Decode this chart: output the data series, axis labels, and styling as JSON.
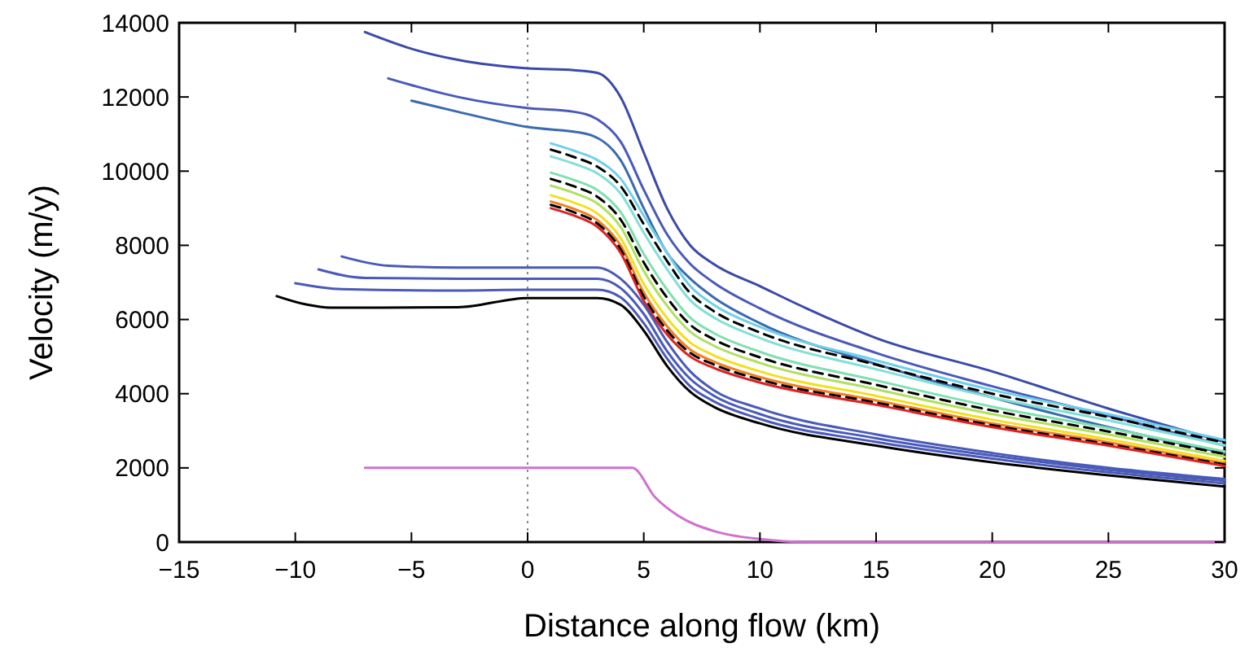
{
  "chart_data": {
    "type": "line",
    "xlabel": "Distance along flow (km)",
    "ylabel": "Velocity (m/y)",
    "xlim": [
      -15,
      30
    ],
    "ylim": [
      0,
      14000
    ],
    "xticks": [
      {
        "value": -15,
        "label": "−15"
      },
      {
        "value": -10,
        "label": "−10"
      },
      {
        "value": -5,
        "label": "−5"
      },
      0,
      5,
      10,
      15,
      20,
      25,
      30
    ],
    "yticks": [
      0,
      2000,
      4000,
      6000,
      8000,
      10000,
      12000,
      14000
    ],
    "grid": false,
    "marker": "none",
    "ref_lines": [
      {
        "axis": "x",
        "value": 0,
        "color": "#888888",
        "line_style": "dotted"
      }
    ],
    "series": [
      {
        "color": "#3a4aa8",
        "x": [
          -7,
          -5,
          -3,
          0,
          2,
          3,
          4,
          5,
          6,
          7,
          8,
          10,
          12,
          15,
          20,
          25,
          30
        ],
        "values": [
          13750,
          13300,
          13000,
          12770,
          12720,
          12650,
          12000,
          10500,
          9000,
          8000,
          7500,
          6900,
          6300,
          5500,
          4600,
          3600,
          2700
        ]
      },
      {
        "color": "#4a5ab8",
        "x": [
          -6,
          -3,
          0,
          2,
          3,
          4,
          5,
          6,
          7,
          8,
          10,
          15,
          20,
          25,
          30
        ],
        "values": [
          12500,
          12000,
          11700,
          11600,
          11400,
          10800,
          9500,
          8300,
          7500,
          7000,
          6300,
          5100,
          4200,
          3400,
          2600
        ]
      },
      {
        "color": "#3a6ab0",
        "x": [
          -5,
          -3,
          0,
          2.5,
          4,
          5,
          6,
          7,
          8,
          10,
          15,
          20,
          25,
          30
        ],
        "values": [
          11900,
          11600,
          11190,
          11010,
          10300,
          9000,
          7800,
          7100,
          6600,
          5900,
          4800,
          3900,
          3100,
          2400
        ]
      },
      {
        "color": "#6fd0e8",
        "x": [
          1,
          2,
          3,
          4,
          5,
          6,
          7,
          8,
          10,
          15,
          20,
          25,
          30
        ],
        "values": [
          10750,
          10550,
          10300,
          9800,
          8800,
          7800,
          6900,
          6400,
          5800,
          4900,
          4100,
          3450,
          2750
        ]
      },
      {
        "color": "#000000",
        "line_style": "dashed",
        "x": [
          1,
          2,
          3,
          4,
          5,
          6,
          7,
          8,
          10,
          15,
          20,
          25,
          30
        ],
        "values": [
          10580,
          10380,
          10120,
          9600,
          8570,
          7580,
          6710,
          6230,
          5650,
          4780,
          4000,
          3370,
          2680
        ]
      },
      {
        "color": "#80e0d8",
        "x": [
          1,
          2,
          3,
          4,
          5,
          6,
          7,
          8,
          10,
          15,
          20,
          25,
          30
        ],
        "values": [
          10400,
          10200,
          9940,
          9400,
          8340,
          7360,
          6520,
          6060,
          5500,
          4660,
          3900,
          3280,
          2610
        ]
      },
      {
        "color": "#7fe0b0",
        "x": [
          1,
          2,
          3,
          4,
          5,
          6,
          7,
          8,
          10,
          15,
          20,
          25,
          30
        ],
        "values": [
          9960,
          9760,
          9490,
          8900,
          7770,
          6810,
          6050,
          5640,
          5130,
          4360,
          3650,
          3070,
          2440
        ]
      },
      {
        "color": "#000000",
        "line_style": "dashed",
        "x": [
          1,
          2,
          3,
          4,
          5,
          6,
          7,
          8,
          10,
          15,
          20,
          25,
          30
        ],
        "values": [
          9790,
          9590,
          9310,
          8700,
          7540,
          6590,
          5860,
          5470,
          4980,
          4240,
          3550,
          2980,
          2370
        ]
      },
      {
        "color": "#b0e060",
        "x": [
          1,
          2,
          3,
          4,
          5,
          6,
          7,
          8,
          10,
          15,
          20,
          25,
          30
        ],
        "values": [
          9610,
          9410,
          9130,
          8500,
          7310,
          6370,
          5670,
          5300,
          4830,
          4120,
          3450,
          2900,
          2300
        ]
      },
      {
        "color": "#f0e020",
        "x": [
          1,
          2,
          3,
          4,
          5,
          6,
          7,
          8,
          10,
          15,
          20,
          25,
          30
        ],
        "values": [
          9350,
          9150,
          8860,
          8200,
          6960,
          6040,
          5380,
          5040,
          4600,
          3940,
          3300,
          2770,
          2190
        ]
      },
      {
        "color": "#f08020",
        "x": [
          1,
          2,
          3,
          4,
          5,
          6,
          7,
          8,
          10,
          15,
          20,
          25,
          30
        ],
        "values": [
          9180,
          8980,
          8680,
          8000,
          6730,
          5820,
          5190,
          4870,
          4450,
          3820,
          3200,
          2690,
          2120
        ]
      },
      {
        "color": "#000000",
        "line_style": "dashed",
        "x": [
          1,
          2,
          3,
          4,
          5,
          6,
          7,
          8,
          10,
          15,
          20,
          25,
          30
        ],
        "values": [
          9090,
          8890,
          8590,
          7900,
          6620,
          5710,
          5100,
          4790,
          4380,
          3760,
          3150,
          2640,
          2090
        ]
      },
      {
        "color": "#e02020",
        "x": [
          1,
          2,
          3,
          4,
          5,
          6,
          7,
          8,
          10,
          15,
          20,
          25,
          30
        ],
        "values": [
          9000,
          8800,
          8500,
          7800,
          6500,
          5600,
          5000,
          4700,
          4300,
          3700,
          3100,
          2600,
          2050
        ]
      },
      {
        "color": "#4a5ab8",
        "x": [
          -8,
          -6,
          -3,
          0,
          3,
          4,
          5,
          6,
          7,
          8,
          10,
          15,
          20,
          25,
          30
        ],
        "values": [
          7700,
          7450,
          7400,
          7400,
          7400,
          7100,
          6400,
          5400,
          4600,
          4100,
          3600,
          2900,
          2400,
          2000,
          1700
        ]
      },
      {
        "color": "#4a5ab8",
        "x": [
          -9,
          -7,
          -3,
          0,
          3,
          4,
          5,
          6,
          7,
          8,
          10,
          15,
          20,
          25,
          30
        ],
        "values": [
          7350,
          7120,
          7100,
          7100,
          7100,
          6850,
          6150,
          5150,
          4400,
          3950,
          3450,
          2800,
          2330,
          1950,
          1650
        ]
      },
      {
        "color": "#4a5ab8",
        "x": [
          -10,
          -8,
          -3,
          0,
          3,
          4,
          5,
          6,
          7,
          8,
          10,
          15,
          20,
          25,
          30
        ],
        "values": [
          6980,
          6820,
          6780,
          6800,
          6800,
          6600,
          5900,
          4950,
          4200,
          3800,
          3320,
          2700,
          2250,
          1880,
          1580
        ]
      },
      {
        "color": "#000000",
        "x": [
          -10.8,
          -9.5,
          -8.5,
          -3,
          0,
          3,
          4,
          5,
          6,
          7,
          8,
          10,
          15,
          20,
          25,
          30
        ],
        "values": [
          6630,
          6400,
          6320,
          6330,
          6580,
          6580,
          6400,
          5700,
          4750,
          4050,
          3650,
          3200,
          2600,
          2150,
          1800,
          1500
        ]
      },
      {
        "color": "#d070d0",
        "x": [
          -7,
          4.5,
          5.5,
          6.5,
          8,
          10,
          12,
          30
        ],
        "values": [
          2000,
          2000,
          1200,
          700,
          300,
          80,
          0,
          0
        ]
      }
    ]
  }
}
